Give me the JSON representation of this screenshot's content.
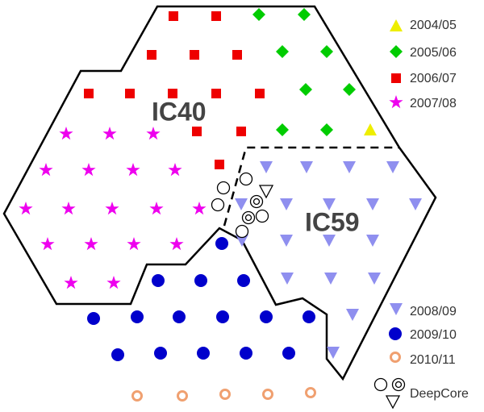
{
  "regions": {
    "ic40": "IC40",
    "ic59": "IC59"
  },
  "legend": [
    "2004/05",
    "2005/06",
    "2006/07",
    "2007/08",
    "2008/09",
    "2009/10",
    "2010/11"
  ],
  "deepcore": "DeepCore"
}
